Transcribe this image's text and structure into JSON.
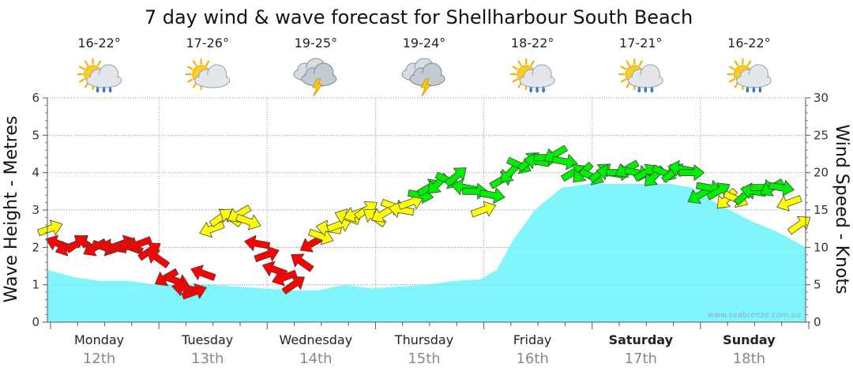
{
  "chart_data": {
    "type": "area",
    "title": "7 day wind & wave forecast for Shellharbour South Beach",
    "ylabel_left": "Wave Height - Metres",
    "ylabel_right": "Wind Speed - Knots",
    "ylim_left": [
      0,
      6
    ],
    "ylim_right": [
      0,
      30
    ],
    "yticks_left": [
      "0",
      "1",
      "2",
      "3",
      "4",
      "5",
      "6"
    ],
    "yticks_right": [
      "0",
      "5",
      "10",
      "15",
      "20",
      "25",
      "30"
    ],
    "grid": true,
    "watermark": "www.seabreeze.com.au",
    "days": [
      {
        "name": "Monday",
        "date": "12th",
        "bold": false,
        "temp": "16-22°",
        "icon": "sun-cloud-rain-icon",
        "wx": "sunrain"
      },
      {
        "name": "Tuesday",
        "date": "13th",
        "bold": false,
        "temp": "17-26°",
        "icon": "sun-cloud-icon",
        "wx": "suncloud"
      },
      {
        "name": "Wednesday",
        "date": "14th",
        "bold": false,
        "temp": "19-25°",
        "icon": "thunderstorm-icon",
        "wx": "storm"
      },
      {
        "name": "Thursday",
        "date": "15th",
        "bold": false,
        "temp": "19-24°",
        "icon": "thunderstorm-icon",
        "wx": "storm"
      },
      {
        "name": "Friday",
        "date": "16th",
        "bold": false,
        "temp": "18-22°",
        "icon": "sun-cloud-rain-icon",
        "wx": "sunrain"
      },
      {
        "name": "Saturday",
        "date": "17th",
        "bold": true,
        "temp": "17-21°",
        "icon": "sun-cloud-rain-icon",
        "wx": "sunrain"
      },
      {
        "name": "Sunday",
        "date": "18th",
        "bold": true,
        "temp": "16-22°",
        "icon": "sun-cloud-rain-icon",
        "wx": "sunrain"
      }
    ],
    "wave_height": {
      "name": "Wave Height (m)",
      "x_days": [
        0,
        0.25,
        0.5,
        0.75,
        1.0,
        1.25,
        1.5,
        1.75,
        2.0,
        2.25,
        2.5,
        2.75,
        3.0,
        3.25,
        3.5,
        3.75,
        4.0,
        4.15,
        4.3,
        4.5,
        4.75,
        5.0,
        5.25,
        5.5,
        5.75,
        5.95,
        6.1,
        6.3,
        6.5,
        6.75,
        7.0
      ],
      "values": [
        1.4,
        1.2,
        1.1,
        1.1,
        1.0,
        1.0,
        1.0,
        0.95,
        0.9,
        0.85,
        0.85,
        1.0,
        0.9,
        0.95,
        1.0,
        1.1,
        1.15,
        1.4,
        2.2,
        3.0,
        3.6,
        3.7,
        3.7,
        3.7,
        3.7,
        3.6,
        3.3,
        3.0,
        2.7,
        2.4,
        2.0
      ],
      "color": "#80f5fb"
    },
    "wind": {
      "name": "Wind Speed (knots) & Direction",
      "x_days": [
        0.0,
        0.08,
        0.17,
        0.25,
        0.33,
        0.42,
        0.5,
        0.58,
        0.67,
        0.75,
        0.83,
        0.92,
        1.0,
        1.08,
        1.17,
        1.25,
        1.33,
        1.42,
        1.5,
        1.58,
        1.67,
        1.75,
        1.83,
        1.92,
        2.0,
        2.08,
        2.17,
        2.25,
        2.33,
        2.42,
        2.5,
        2.58,
        2.67,
        2.75,
        2.83,
        2.92,
        3.0,
        3.08,
        3.17,
        3.25,
        3.33,
        3.42,
        3.5,
        3.58,
        3.67,
        3.75,
        3.83,
        3.92,
        4.0,
        4.08,
        4.17,
        4.25,
        4.33,
        4.42,
        4.5,
        4.58,
        4.67,
        4.75,
        4.83,
        4.92,
        5.0,
        5.08,
        5.17,
        5.25,
        5.33,
        5.42,
        5.5,
        5.58,
        5.67,
        5.75,
        5.83,
        5.92,
        6.0,
        6.08,
        6.17,
        6.25,
        6.33,
        6.42,
        6.5,
        6.58,
        6.67,
        6.75,
        6.83,
        6.92
      ],
      "knots": [
        12.5,
        10.5,
        10.0,
        10.5,
        10.5,
        10.0,
        10.0,
        10.0,
        10.5,
        10.0,
        10.5,
        9.5,
        8.5,
        6.0,
        5.5,
        4.5,
        4.0,
        6.5,
        12.5,
        14.0,
        14.0,
        14.5,
        13.5,
        10.5,
        9.0,
        7.0,
        6.0,
        5.0,
        8.0,
        10.5,
        11.5,
        12.5,
        13.0,
        14.0,
        14.5,
        15.0,
        14.0,
        14.5,
        15.5,
        15.0,
        16.0,
        17.0,
        18.0,
        18.5,
        19.0,
        19.5,
        18.0,
        17.5,
        15.0,
        17.0,
        19.0,
        20.0,
        21.0,
        21.5,
        21.5,
        22.0,
        22.5,
        21.5,
        20.0,
        20.0,
        19.5,
        20.0,
        20.0,
        20.0,
        20.5,
        20.0,
        20.0,
        19.5,
        20.0,
        20.0,
        20.5,
        20.0,
        17.0,
        18.0,
        17.5,
        16.5,
        16.5,
        17.0,
        17.5,
        18.0,
        18.0,
        18.0,
        16.0,
        13.0
      ],
      "colors_legend": {
        "light": "#ff0000",
        "moderate": "#ffff00",
        "fresh": "#00ee00"
      }
    }
  }
}
